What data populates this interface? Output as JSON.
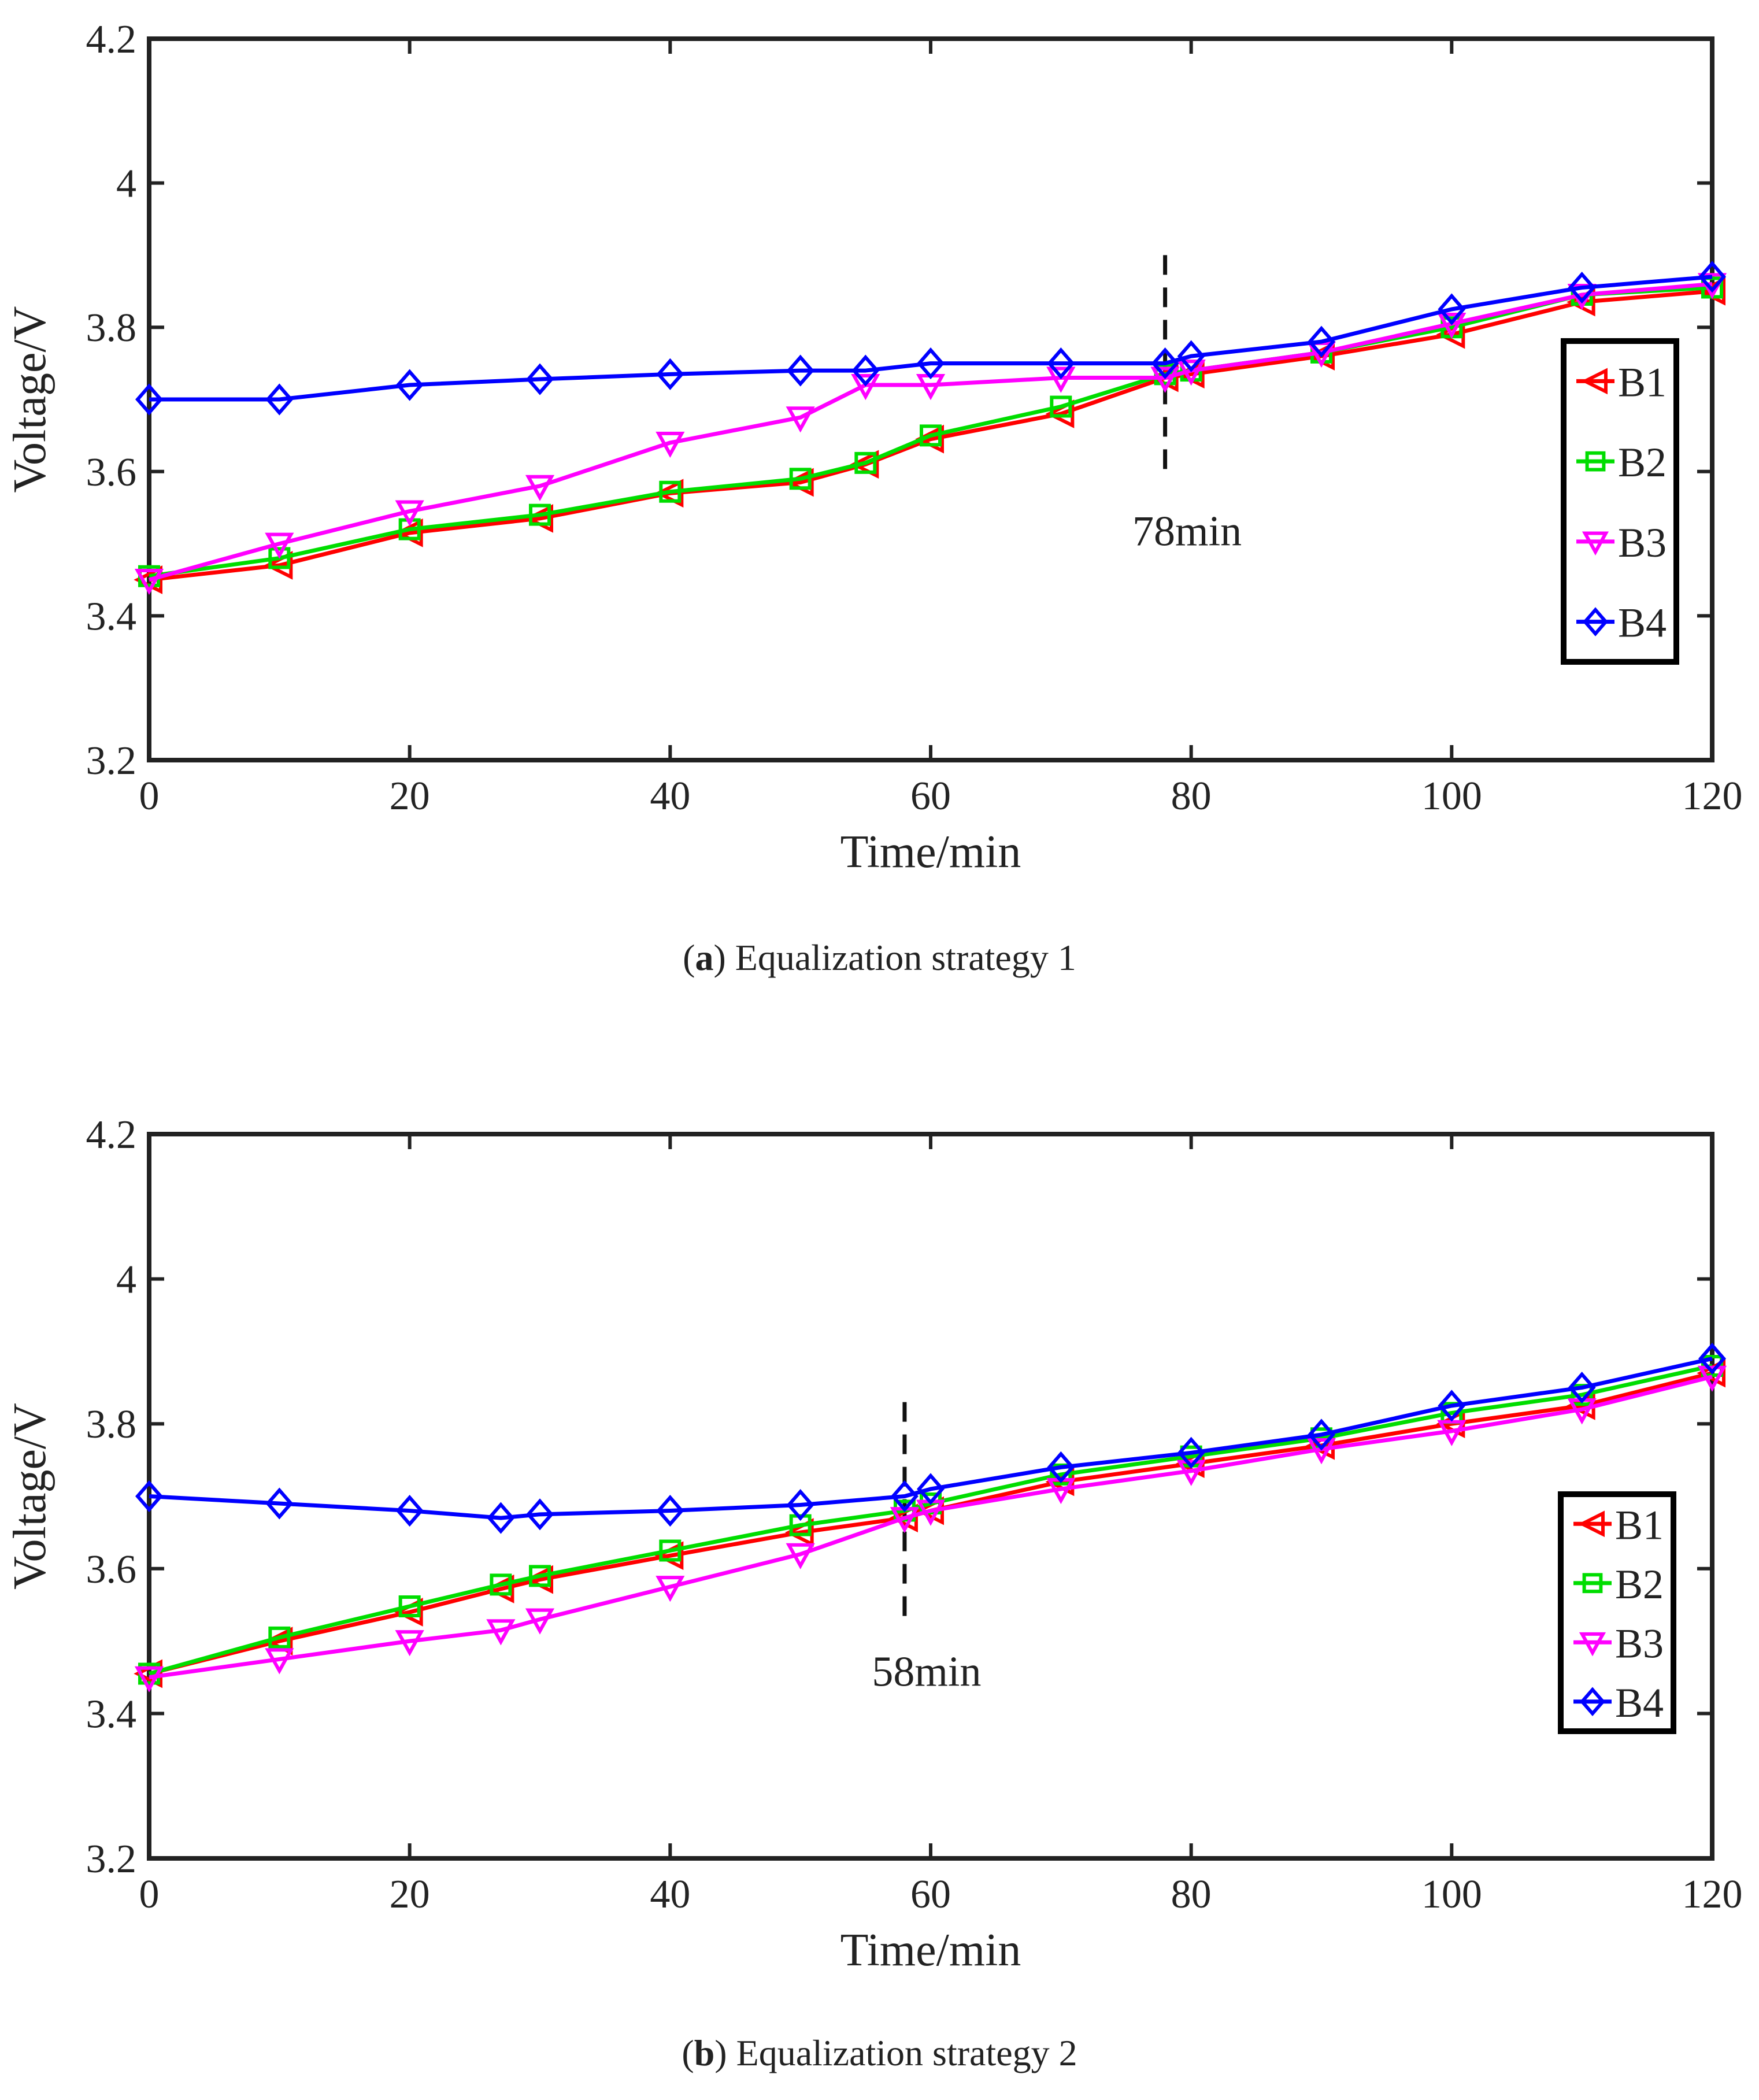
{
  "chart_data": [
    {
      "type": "line",
      "id": "a",
      "caption_letter": "a",
      "caption_text": "Equalization strategy 1",
      "xlabel": "Time/min",
      "ylabel": "Voltage/V",
      "xlim": [
        0,
        120
      ],
      "ylim": [
        3.2,
        4.2
      ],
      "xticks": [
        0,
        20,
        40,
        60,
        80,
        100,
        120
      ],
      "yticks": [
        3.2,
        3.4,
        3.6,
        3.8,
        4,
        4.2
      ],
      "ytick_labels": [
        "3.2",
        "3.4",
        "3.6",
        "3.8",
        "4",
        "4.2"
      ],
      "grid": false,
      "legend_position": "right",
      "marker_line": {
        "x": 78,
        "y_from": 3.59,
        "y_to": 3.9,
        "label": "78min"
      },
      "series": [
        {
          "name": "B1",
          "color": "#ff0000",
          "marker": "triangle-left",
          "x": [
            0,
            10,
            20,
            30,
            40,
            50,
            55,
            60,
            70,
            78,
            80,
            90,
            100,
            110,
            120
          ],
          "values": [
            3.45,
            3.47,
            3.515,
            3.535,
            3.57,
            3.585,
            3.61,
            3.645,
            3.68,
            3.73,
            3.735,
            3.76,
            3.79,
            3.835,
            3.85
          ]
        },
        {
          "name": "B2",
          "color": "#00dd00",
          "marker": "square",
          "x": [
            0,
            10,
            20,
            30,
            40,
            50,
            55,
            60,
            70,
            78,
            80,
            90,
            100,
            110,
            120
          ],
          "values": [
            3.455,
            3.48,
            3.52,
            3.54,
            3.572,
            3.59,
            3.612,
            3.65,
            3.69,
            3.735,
            3.74,
            3.765,
            3.8,
            3.845,
            3.855
          ]
        },
        {
          "name": "B3",
          "color": "#ff00ff",
          "marker": "triangle-down",
          "x": [
            0,
            10,
            20,
            30,
            40,
            50,
            55,
            60,
            70,
            78,
            80,
            90,
            100,
            110,
            120
          ],
          "values": [
            3.45,
            3.5,
            3.545,
            3.58,
            3.64,
            3.675,
            3.72,
            3.72,
            3.73,
            3.73,
            3.74,
            3.765,
            3.805,
            3.845,
            3.86
          ]
        },
        {
          "name": "B4",
          "color": "#0000ff",
          "marker": "diamond",
          "x": [
            0,
            10,
            20,
            30,
            40,
            50,
            55,
            60,
            70,
            78,
            80,
            90,
            100,
            110,
            120
          ],
          "values": [
            3.7,
            3.7,
            3.72,
            3.728,
            3.735,
            3.74,
            3.74,
            3.75,
            3.75,
            3.75,
            3.76,
            3.78,
            3.825,
            3.855,
            3.87
          ]
        }
      ]
    },
    {
      "type": "line",
      "id": "b",
      "caption_letter": "b",
      "caption_text": "Equalization strategy 2",
      "xlabel": "Time/min",
      "ylabel": "Voltage/V",
      "xlim": [
        0,
        120
      ],
      "ylim": [
        3.2,
        4.2
      ],
      "xticks": [
        0,
        20,
        40,
        60,
        80,
        100,
        120
      ],
      "yticks": [
        3.2,
        3.4,
        3.6,
        3.8,
        4,
        4.2
      ],
      "ytick_labels": [
        "3.2",
        "3.4",
        "3.6",
        "3.8",
        "4",
        "4.2"
      ],
      "grid": false,
      "legend_position": "right",
      "marker_line": {
        "x": 58,
        "y_from": 3.53,
        "y_to": 3.83,
        "label": "58min"
      },
      "series": [
        {
          "name": "B1",
          "color": "#ff0000",
          "marker": "triangle-left",
          "x": [
            0,
            10,
            20,
            27,
            30,
            40,
            50,
            58,
            60,
            70,
            80,
            90,
            100,
            110,
            120
          ],
          "values": [
            3.455,
            3.5,
            3.54,
            3.572,
            3.585,
            3.618,
            3.65,
            3.67,
            3.68,
            3.72,
            3.745,
            3.77,
            3.8,
            3.825,
            3.87
          ]
        },
        {
          "name": "B2",
          "color": "#00dd00",
          "marker": "square",
          "x": [
            0,
            10,
            20,
            27,
            30,
            40,
            50,
            58,
            60,
            70,
            80,
            90,
            100,
            110,
            120
          ],
          "values": [
            3.455,
            3.505,
            3.548,
            3.578,
            3.59,
            3.625,
            3.66,
            3.68,
            3.69,
            3.73,
            3.755,
            3.78,
            3.815,
            3.84,
            3.88
          ]
        },
        {
          "name": "B3",
          "color": "#ff00ff",
          "marker": "triangle-down",
          "x": [
            0,
            10,
            20,
            27,
            30,
            40,
            50,
            58,
            60,
            70,
            80,
            90,
            100,
            110,
            120
          ],
          "values": [
            3.45,
            3.475,
            3.5,
            3.515,
            3.53,
            3.575,
            3.62,
            3.67,
            3.68,
            3.71,
            3.735,
            3.765,
            3.79,
            3.82,
            3.865
          ]
        },
        {
          "name": "B4",
          "color": "#0000ff",
          "marker": "diamond",
          "x": [
            0,
            10,
            20,
            27,
            30,
            40,
            50,
            58,
            60,
            70,
            80,
            90,
            100,
            110,
            120
          ],
          "values": [
            3.7,
            3.69,
            3.68,
            3.67,
            3.675,
            3.68,
            3.688,
            3.7,
            3.71,
            3.74,
            3.76,
            3.785,
            3.825,
            3.85,
            3.89
          ]
        }
      ]
    }
  ]
}
